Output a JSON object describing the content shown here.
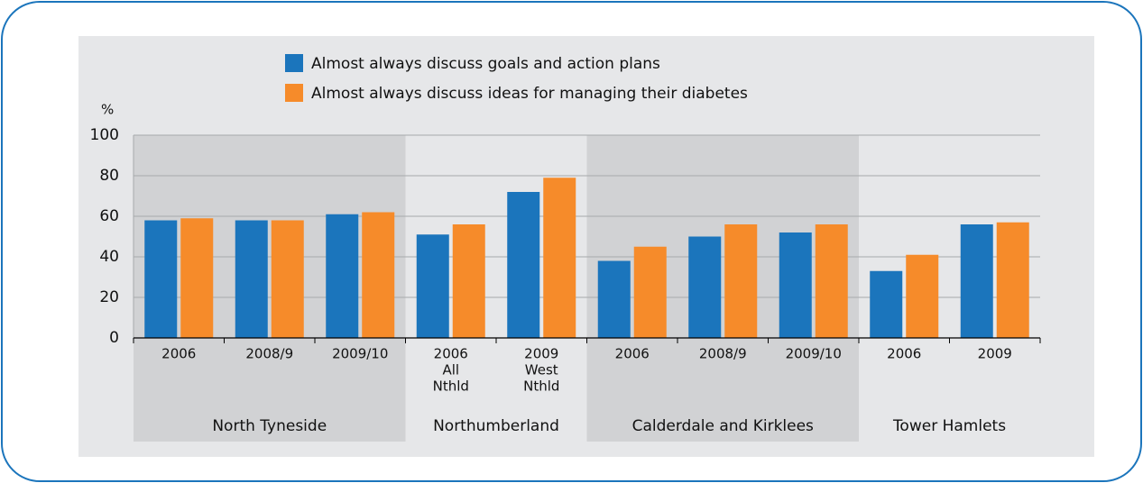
{
  "chart_data": {
    "type": "bar",
    "y_label": "%",
    "groups": [
      {
        "name": "North Tyneside",
        "categories": [
          [
            "2006"
          ],
          [
            "2008/9"
          ],
          [
            "2009/10"
          ]
        ]
      },
      {
        "name": "Northumberland",
        "categories": [
          [
            "2006",
            "All",
            "Nthld"
          ],
          [
            "2009",
            "West",
            "Nthld"
          ]
        ]
      },
      {
        "name": "Calderdale and Kirklees",
        "categories": [
          [
            "2006"
          ],
          [
            "2008/9"
          ],
          [
            "2009/10"
          ]
        ]
      },
      {
        "name": "Tower Hamlets",
        "categories": [
          [
            "2006"
          ],
          [
            "2009"
          ]
        ]
      }
    ],
    "series": [
      {
        "name": "Almost always discuss goals and action plans",
        "color": "#1b75bc",
        "values": [
          58,
          58,
          61,
          51,
          72,
          38,
          50,
          52,
          33,
          56
        ]
      },
      {
        "name": "Almost always discuss ideas for managing their diabetes",
        "color": "#f68b2a",
        "values": [
          59,
          58,
          62,
          56,
          79,
          45,
          56,
          56,
          41,
          57
        ]
      }
    ],
    "ylim": [
      0,
      100
    ],
    "yticks": [
      0,
      20,
      40,
      60,
      80,
      100
    ],
    "grid": true
  }
}
